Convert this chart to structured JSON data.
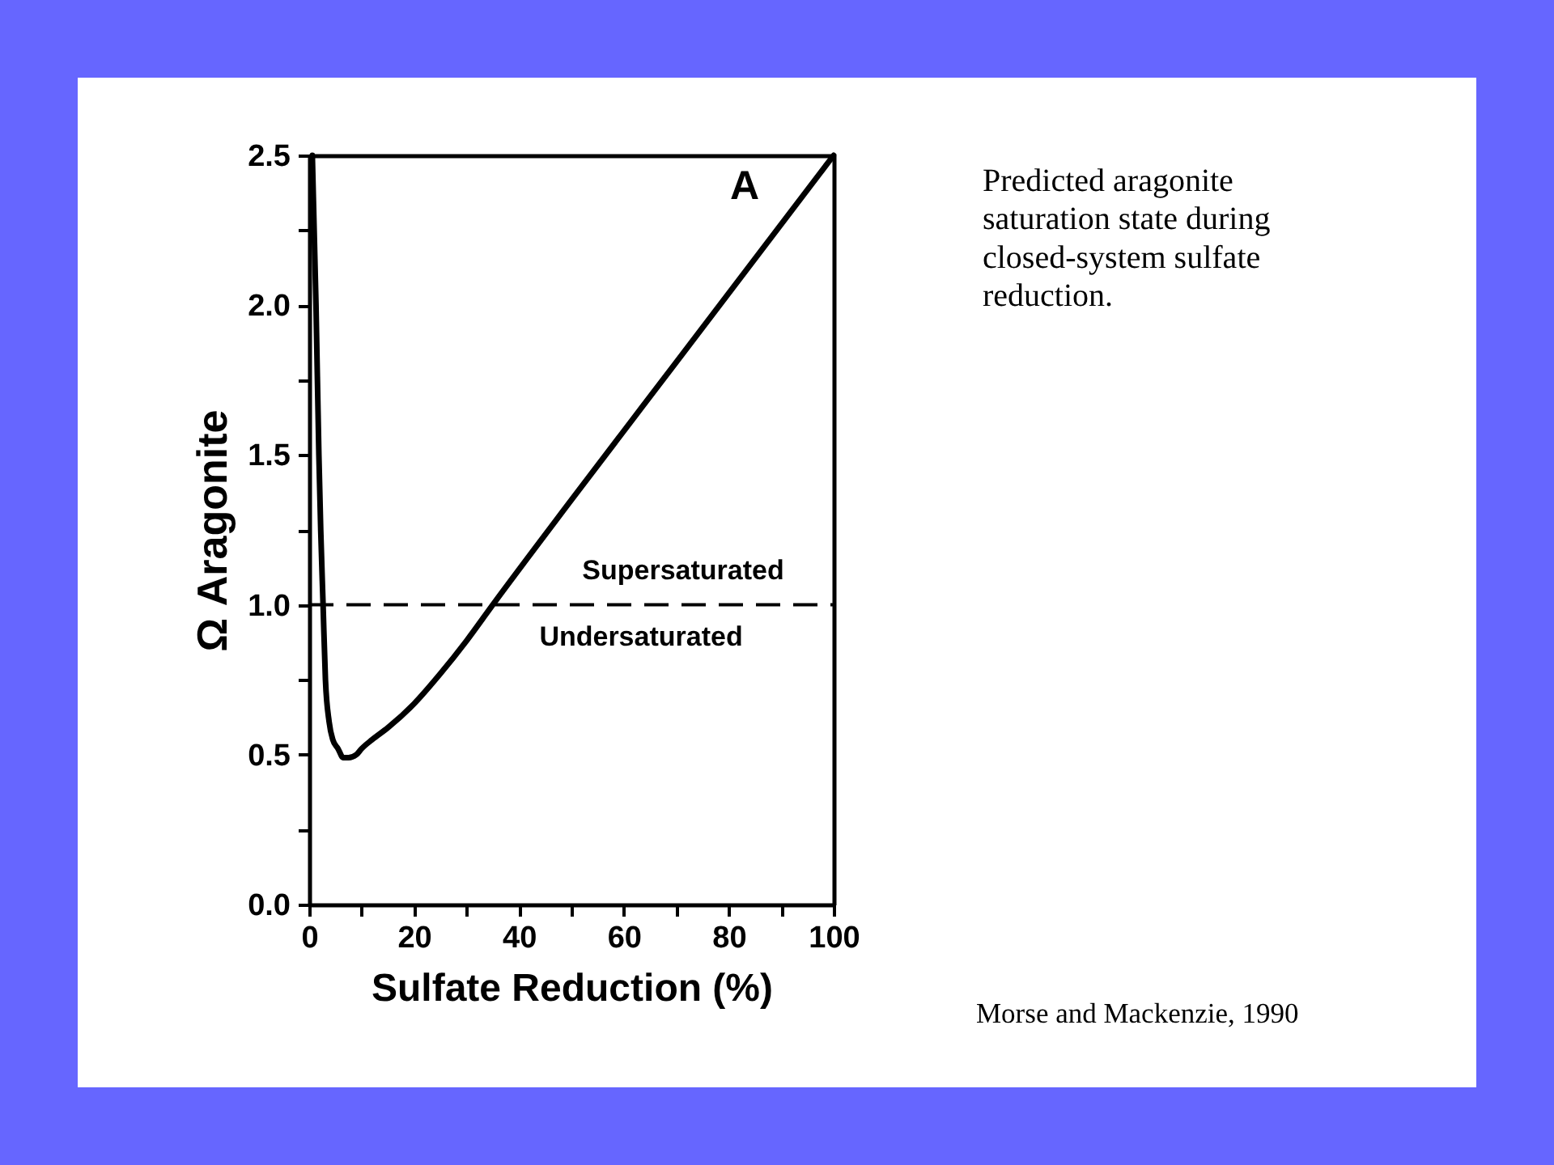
{
  "chart_data": {
    "type": "line",
    "xlabel": "Sulfate Reduction (%)",
    "ylabel": "Ω Aragonite",
    "x": [
      0.6,
      1.3,
      1.85,
      2.2,
      2.65,
      3.1,
      3.8,
      4.5,
      5.5,
      6.5,
      7.5,
      9,
      10,
      12,
      15,
      20,
      25,
      30,
      35,
      50,
      70,
      100
    ],
    "series": [
      {
        "color": "#000000",
        "values": [
          2.5,
          2.0,
          1.5,
          1.25,
          1.0,
          0.75,
          0.61,
          0.55,
          0.52,
          0.49,
          0.49,
          0.5,
          0.52,
          0.55,
          0.59,
          0.67,
          0.77,
          0.88,
          1.0,
          1.35,
          1.81,
          2.5
        ]
      }
    ],
    "xlim": [
      0,
      100
    ],
    "ylim": [
      0,
      2.5
    ],
    "xticks": [
      0,
      {
        "value": 10,
        "label": null
      },
      20,
      {
        "value": 30,
        "label": null
      },
      40,
      {
        "value": 50,
        "label": null
      },
      60,
      {
        "value": 70,
        "label": null
      },
      80,
      {
        "value": 90,
        "label": null
      },
      100
    ],
    "yticks": [
      {
        "value": 0,
        "label": "0.0"
      },
      {
        "value": 0.25,
        "label": null
      },
      0.5,
      {
        "value": 0.75,
        "label": null
      },
      {
        "value": 1,
        "label": "1.0"
      },
      {
        "value": 1.25,
        "label": null
      },
      1.5,
      {
        "value": 1.75,
        "label": null
      },
      {
        "value": 2,
        "label": "2.0"
      },
      {
        "value": 2.25,
        "label": null
      },
      2.5
    ],
    "ref_lines": [
      {
        "axis": "y",
        "value": 1,
        "color": "#000000",
        "line_style": "dashed"
      }
    ],
    "annotations": [
      "A",
      "Supersaturated",
      "Undersaturated",
      "Predicted aragonite saturation state during closed-system sulfate reduction.",
      "Morse and Mackenzie, 1990"
    ],
    "grid": false,
    "line_style": "solid",
    "marker": "none"
  }
}
